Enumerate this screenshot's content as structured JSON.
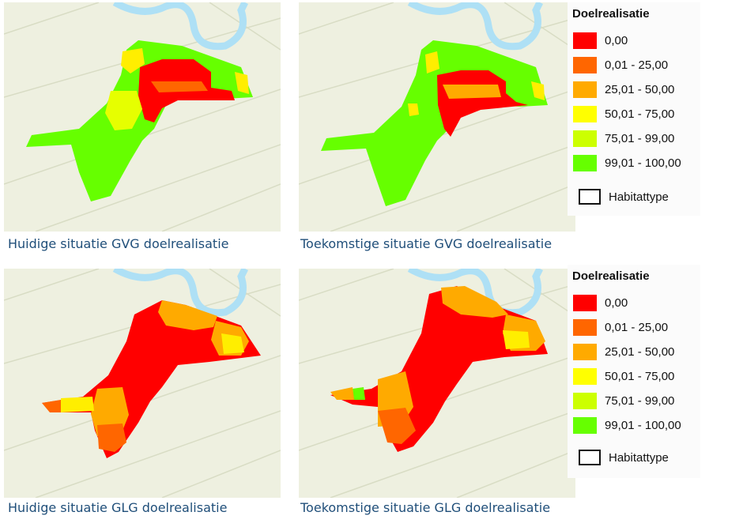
{
  "colors": {
    "class_0": "#ff0000",
    "class_1": "#ff6600",
    "class_2": "#ffaa00",
    "class_3": "#ffff00",
    "class_4": "#ccff00",
    "class_5": "#66ff00",
    "basemap": "#eef0e0",
    "river": "#aee0f5",
    "caption": "#1f4e79"
  },
  "maps": [
    {
      "caption": "Huidige situatie GVG doelrealisatie"
    },
    {
      "caption": "Toekomstige situatie GVG doelrealisatie"
    },
    {
      "caption": "Huidige situatie GLG doelrealisatie"
    },
    {
      "caption": "Toekomstige situatie GLG doelrealisatie"
    }
  ],
  "legends": [
    {
      "title": "Doelrealisatie",
      "items": [
        {
          "label": "0,00",
          "color": "#ff0000"
        },
        {
          "label": "0,01 - 25,00",
          "color": "#ff6600"
        },
        {
          "label": "25,01 - 50,00",
          "color": "#ffaa00"
        },
        {
          "label": "50,01 - 75,00",
          "color": "#ffff00"
        },
        {
          "label": "75,01 - 99,00",
          "color": "#ccff00"
        },
        {
          "label": "99,01 - 100,00",
          "color": "#66ff00"
        }
      ],
      "habitat_label": "Habitattype"
    },
    {
      "title": "Doelrealisatie",
      "items": [
        {
          "label": "0,00",
          "color": "#ff0000"
        },
        {
          "label": "0,01 - 25,00",
          "color": "#ff6600"
        },
        {
          "label": "25,01 - 50,00",
          "color": "#ffaa00"
        },
        {
          "label": "50,01 - 75,00",
          "color": "#ffff00"
        },
        {
          "label": "75,01 - 99,00",
          "color": "#ccff00"
        },
        {
          "label": "99,01 - 100,00",
          "color": "#66ff00"
        }
      ],
      "habitat_label": "Habitattype"
    }
  ]
}
